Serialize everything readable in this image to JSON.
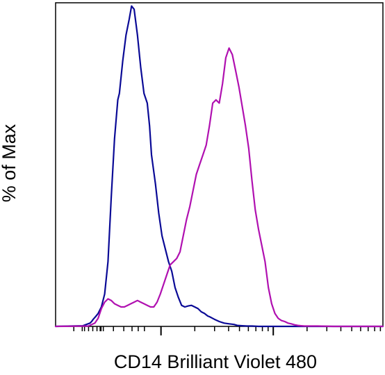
{
  "chart_data": {
    "type": "line",
    "title": "",
    "xlabel": "CD14 Brilliant Violet 480",
    "ylabel": "% of Max",
    "x_scale": "log (biexponential)",
    "xlim": [
      0,
      100
    ],
    "ylim": [
      0,
      100
    ],
    "grid": false,
    "legend": "none",
    "series": [
      {
        "color": "#0a0a96",
        "x": [
          0.0,
          8.3,
          10.5,
          11.0,
          11.5,
          12.2,
          13.0,
          14.0,
          15.0,
          16.0,
          17.0,
          18.0,
          19.0,
          19.5,
          20.5,
          21.5,
          22.5,
          23.2,
          24.0,
          25.0,
          26.0,
          27.0,
          28.0,
          28.7,
          29.3,
          30.5,
          31.5,
          32.5,
          33.5,
          34.5,
          35.5,
          36.5,
          37.5,
          38.5,
          39.5,
          40.5,
          41.5,
          42.5,
          43.5,
          44.5,
          45.5,
          46.5,
          47.0,
          48.5,
          50.0,
          51.5,
          53.0,
          54.5,
          55.5,
          57.0,
          58.5,
          60.0,
          62.0,
          70.0,
          85.0,
          100.0
        ],
        "y": [
          0.0,
          0.2,
          1.0,
          1.5,
          2.2,
          3.0,
          4.0,
          6.0,
          10.0,
          20.0,
          40.0,
          58.0,
          70.0,
          72.0,
          82.0,
          90.0,
          95.0,
          99.0,
          98.0,
          90.0,
          80.0,
          72.0,
          69.0,
          62.0,
          53.0,
          44.0,
          35.0,
          28.0,
          24.0,
          20.0,
          17.0,
          12.0,
          9.0,
          6.5,
          6.0,
          6.3,
          6.5,
          6.0,
          5.5,
          4.5,
          4.0,
          3.2,
          3.0,
          2.2,
          1.5,
          1.0,
          0.8,
          0.6,
          0.3,
          0.2,
          0.1,
          0.1,
          0.0,
          0.0,
          0.0,
          0.0
        ]
      },
      {
        "color": "#b010b0",
        "x": [
          0.0,
          10.0,
          12.0,
          13.0,
          14.0,
          15.0,
          16.0,
          17.0,
          18.0,
          19.0,
          20.0,
          21.0,
          22.0,
          23.0,
          24.0,
          25.0,
          26.0,
          27.0,
          28.0,
          29.0,
          30.0,
          31.0,
          32.0,
          33.0,
          34.0,
          35.0,
          36.0,
          37.0,
          38.0,
          39.0,
          40.0,
          41.0,
          42.0,
          43.0,
          44.0,
          45.0,
          46.0,
          47.0,
          48.0,
          49.0,
          50.0,
          51.0,
          52.0,
          53.0,
          54.0,
          55.0,
          56.0,
          57.0,
          58.0,
          59.0,
          60.0,
          61.0,
          62.0,
          63.0,
          64.0,
          65.0,
          66.0,
          67.0,
          68.0,
          69.0,
          70.0,
          71.0,
          72.0,
          73.0,
          74.0,
          75.0,
          76.0,
          77.0,
          78.0,
          80.0,
          85.0,
          100.0
        ],
        "y": [
          0.0,
          0.1,
          1.0,
          2.5,
          5.5,
          7.5,
          8.5,
          8.0,
          7.0,
          6.5,
          6.0,
          6.0,
          6.5,
          7.0,
          7.5,
          8.0,
          7.5,
          7.0,
          6.5,
          6.0,
          6.0,
          7.5,
          10.0,
          13.0,
          16.0,
          19.0,
          20.0,
          21.0,
          23.0,
          28.0,
          33.0,
          37.0,
          42.0,
          47.0,
          50.0,
          53.0,
          56.0,
          62.0,
          69.0,
          70.0,
          69.0,
          75.0,
          83.0,
          86.0,
          84.0,
          79.0,
          74.0,
          68.0,
          62.0,
          55.0,
          45.0,
          36.0,
          30.0,
          25.0,
          20.0,
          12.0,
          7.0,
          4.0,
          2.5,
          1.8,
          1.5,
          1.0,
          0.8,
          0.5,
          0.3,
          0.2,
          0.1,
          0.1,
          0.1,
          0.1,
          0.0,
          0.0
        ]
      }
    ]
  }
}
